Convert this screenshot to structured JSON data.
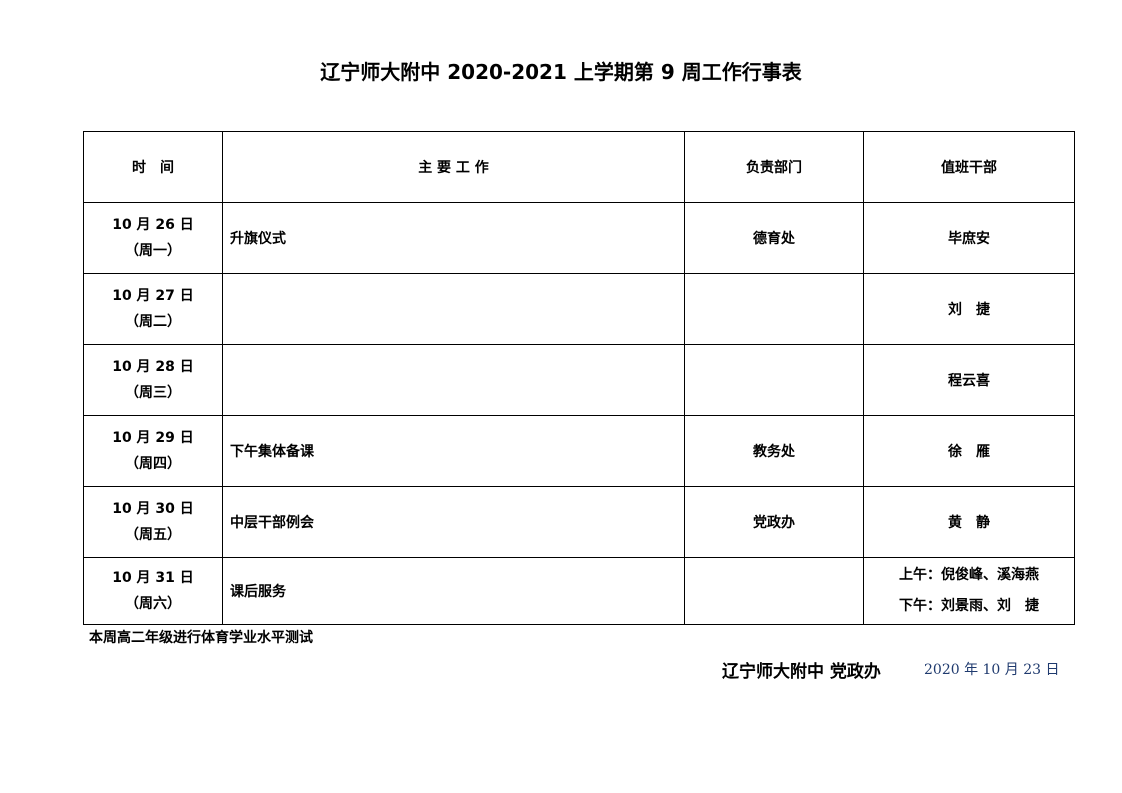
{
  "title": "辽宁师大附中 2020-2021 上学期第 9 周工作行事表",
  "headers": [
    "时　间",
    "主 要 工 作",
    "负责部门",
    "值班干部"
  ],
  "rows": [
    {
      "date": "10 月 26 日",
      "weekday": "（周一）",
      "work": "升旗仪式",
      "dept": "德育处",
      "duty": [
        "毕庶安"
      ]
    },
    {
      "date": "10 月 27 日",
      "weekday": "（周二）",
      "work": "",
      "dept": "",
      "duty": [
        "刘　捷"
      ]
    },
    {
      "date": "10 月 28 日",
      "weekday": "（周三）",
      "work": "",
      "dept": "",
      "duty": [
        "程云喜"
      ]
    },
    {
      "date": "10 月 29 日",
      "weekday": "（周四）",
      "work": "下午集体备课",
      "dept": "教务处",
      "duty": [
        "徐　雁"
      ]
    },
    {
      "date": "10 月 30 日",
      "weekday": "（周五）",
      "work": "中层干部例会",
      "dept": "党政办",
      "duty": [
        "黄　静"
      ]
    },
    {
      "date": "10 月 31 日",
      "weekday": "（周六）",
      "work": "课后服务",
      "dept": "",
      "duty": [
        "上午：倪俊峰、溪海燕",
        "下午：刘景雨、刘　捷"
      ]
    }
  ],
  "note": "本周高二年级进行体育学业水平测试",
  "signature": "辽宁师大附中 党政办",
  "date": "2020 年 10 月 23 日"
}
